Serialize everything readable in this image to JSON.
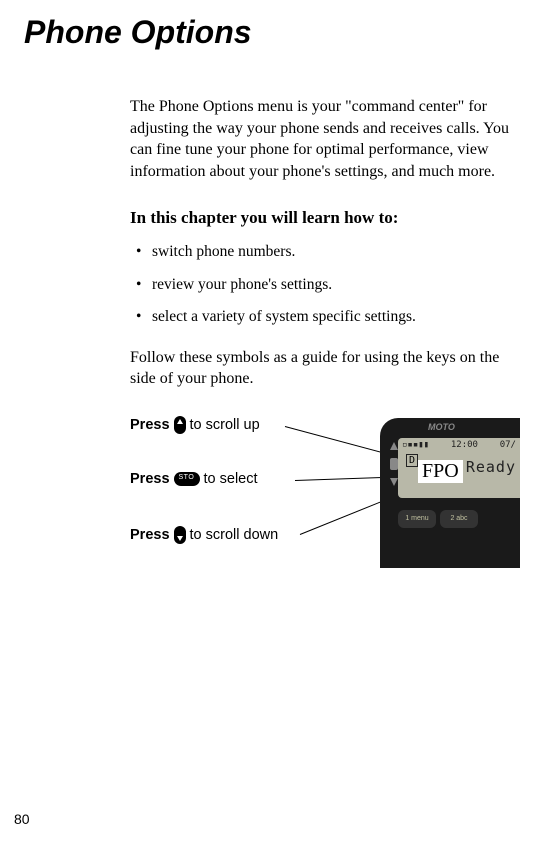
{
  "title": "Phone Options",
  "intro": "The Phone Options menu is your \"command center\" for adjusting the way your phone sends and receives calls. You can fine tune your phone for optimal performance, view information about your phone's settings, and much more.",
  "section_head": "In this chapter you will learn how to:",
  "bullets": [
    "switch phone numbers.",
    "review your phone's settings.",
    "select a variety of system specific settings."
  ],
  "followup": "Follow these symbols as a guide for using the keys on the side of your phone.",
  "keys": {
    "press_label": "Press",
    "scroll_up_text": " to scroll up",
    "select_text": " to select",
    "scroll_down_text": " to scroll down"
  },
  "phone": {
    "brand_text": "MOTO",
    "time": "12:00",
    "date_frag": "07/",
    "indicator": "D",
    "status": "Ready",
    "fpo": "FPO",
    "key1": "1 menu",
    "key2": "2 abc"
  },
  "page_number": "80"
}
